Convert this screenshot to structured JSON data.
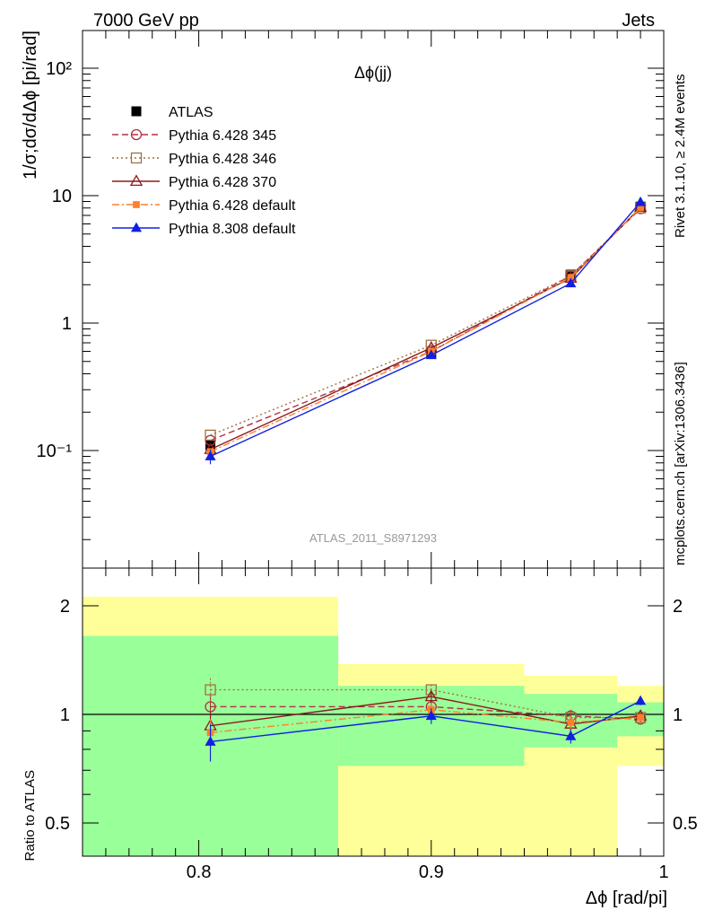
{
  "header": {
    "left": "7000 GeV pp",
    "right": "Jets"
  },
  "side_labels": {
    "rivet": "Rivet 3.1.10, ≥ 2.4M events",
    "mcplots": "mcplots.cern.ch [arXiv:1306.3436]"
  },
  "legend": {
    "items": [
      {
        "label": "ATLAS",
        "color": "#000000",
        "marker": "filled-square",
        "dash": "none"
      },
      {
        "label": "Pythia 6.428 345",
        "color": "#b03040",
        "marker": "open-circle",
        "dash": "dashed"
      },
      {
        "label": "Pythia 6.428 346",
        "color": "#a07040",
        "marker": "open-square",
        "dash": "dotted"
      },
      {
        "label": "Pythia 6.428 370",
        "color": "#8b1a1a",
        "marker": "open-triangle",
        "dash": "solid"
      },
      {
        "label": "Pythia 6.428 default",
        "color": "#ff7f2a",
        "marker": "filled-small-square",
        "dash": "dashdot"
      },
      {
        "label": "Pythia 8.308 default",
        "color": "#1020e0",
        "marker": "filled-triangle",
        "dash": "solid"
      }
    ]
  },
  "chart_data": [
    {
      "type": "line",
      "title": "Δϕ(jj)",
      "ylabel": "1/σ;dσ/dΔϕ [pi/rad]",
      "yscale": "log",
      "xlim": [
        0.75,
        1.0
      ],
      "ylim": [
        0.01,
        200
      ],
      "analysis_label": "ATLAS_2011_S8971293",
      "y_tick_labels": [
        "10⁻¹",
        "1",
        "10",
        "10²"
      ],
      "x": [
        0.805,
        0.9,
        0.96,
        0.99
      ],
      "series": [
        {
          "name": "ATLAS",
          "values": [
            0.11,
            0.58,
            2.4,
            8.2
          ],
          "errors": [
            0.005,
            0.02,
            0.06,
            0.15
          ]
        },
        {
          "name": "Pythia 6.428 345",
          "values": [
            0.12,
            0.6,
            2.35,
            7.9
          ]
        },
        {
          "name": "Pythia 6.428 346",
          "values": [
            0.132,
            0.67,
            2.35,
            8.0
          ]
        },
        {
          "name": "Pythia 6.428 370",
          "values": [
            0.102,
            0.64,
            2.25,
            8.1
          ]
        },
        {
          "name": "Pythia 6.428 default",
          "values": [
            0.098,
            0.6,
            2.28,
            8.05
          ]
        },
        {
          "name": "Pythia 8.308 default",
          "values": [
            0.09,
            0.56,
            2.05,
            8.9
          ],
          "errors": [
            0.012,
            0.03,
            0.08,
            0.2
          ]
        }
      ]
    },
    {
      "type": "line",
      "ylabel": "Ratio to ATLAS",
      "xlabel": "Δϕ [rad/pi]",
      "yscale": "log",
      "xlim": [
        0.75,
        1.0
      ],
      "ylim": [
        0.42,
        2.35
      ],
      "reference_line": 1,
      "y_tick_labels": [
        "0.5",
        "1",
        "2"
      ],
      "x_tick_labels": [
        "0.8",
        "0.9",
        "1"
      ],
      "bands": [
        {
          "x_range": [
            0.75,
            0.86
          ],
          "inner": [
            0.35,
            1.65
          ],
          "outer": [
            0.35,
            2.12
          ]
        },
        {
          "x_range": [
            0.86,
            0.94
          ],
          "inner": [
            0.72,
            1.2
          ],
          "outer": [
            0.35,
            1.38
          ]
        },
        {
          "x_range": [
            0.94,
            0.98
          ],
          "inner": [
            0.81,
            1.14
          ],
          "outer": [
            0.35,
            1.28
          ]
        },
        {
          "x_range": [
            0.98,
            1.0
          ],
          "inner": [
            0.87,
            1.08
          ],
          "outer": [
            0.72,
            1.2
          ]
        }
      ],
      "band_colors": {
        "inner": "#99ff99",
        "outer": "#ffff99"
      },
      "x": [
        0.805,
        0.9,
        0.96,
        0.99
      ],
      "series": [
        {
          "name": "Pythia 6.428 345",
          "values": [
            1.05,
            1.05,
            0.99,
            0.97
          ],
          "errors": [
            0.08,
            0.04,
            0.04,
            0.02
          ]
        },
        {
          "name": "Pythia 6.428 346",
          "values": [
            1.17,
            1.17,
            0.98,
            0.98
          ],
          "errors": [
            0.09,
            0.04,
            0.04,
            0.02
          ]
        },
        {
          "name": "Pythia 6.428 370",
          "values": [
            0.93,
            1.12,
            0.94,
            0.99
          ],
          "errors": [
            0.08,
            0.04,
            0.04,
            0.02
          ]
        },
        {
          "name": "Pythia 6.428 default",
          "values": [
            0.89,
            1.03,
            0.95,
            0.98
          ],
          "errors": [
            0.08,
            0.04,
            0.04,
            0.02
          ]
        },
        {
          "name": "Pythia 8.308 default",
          "values": [
            0.84,
            0.99,
            0.87,
            1.09
          ],
          "errors": [
            0.1,
            0.05,
            0.04,
            0.03
          ]
        }
      ]
    }
  ]
}
